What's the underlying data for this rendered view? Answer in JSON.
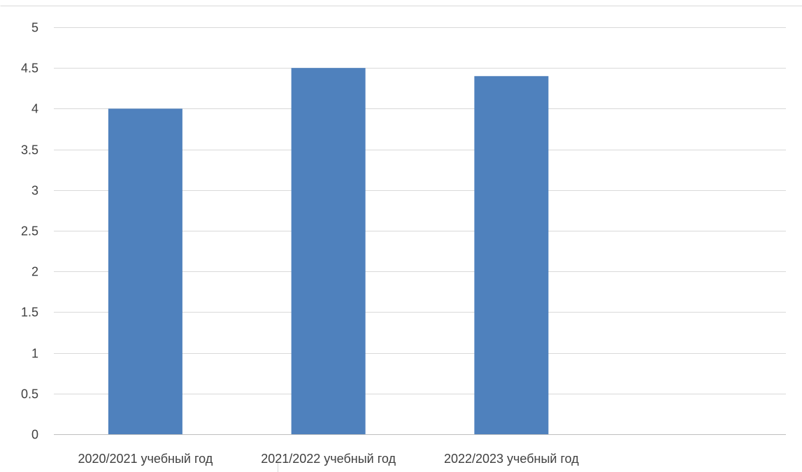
{
  "chart_data": {
    "type": "bar",
    "categories": [
      "2020/2021 учебный год",
      "2021/2022 учебный год",
      "2022/2023 учебный год",
      ""
    ],
    "values": [
      4.0,
      4.5,
      4.4,
      null
    ],
    "title": "",
    "xlabel": "",
    "ylabel": "",
    "ylim": [
      0,
      5
    ],
    "yticks": [
      "0",
      "0.5",
      "1",
      "1.5",
      "2",
      "2.5",
      "3",
      "3.5",
      "4",
      "4.5",
      "5"
    ],
    "grid": true,
    "legend": "none",
    "colors": {
      "bar": "#4F81BD",
      "grid": "#D9D9D9",
      "axis": "#BFBFBF",
      "text": "#404040",
      "frame": "#D9D9D9"
    }
  }
}
